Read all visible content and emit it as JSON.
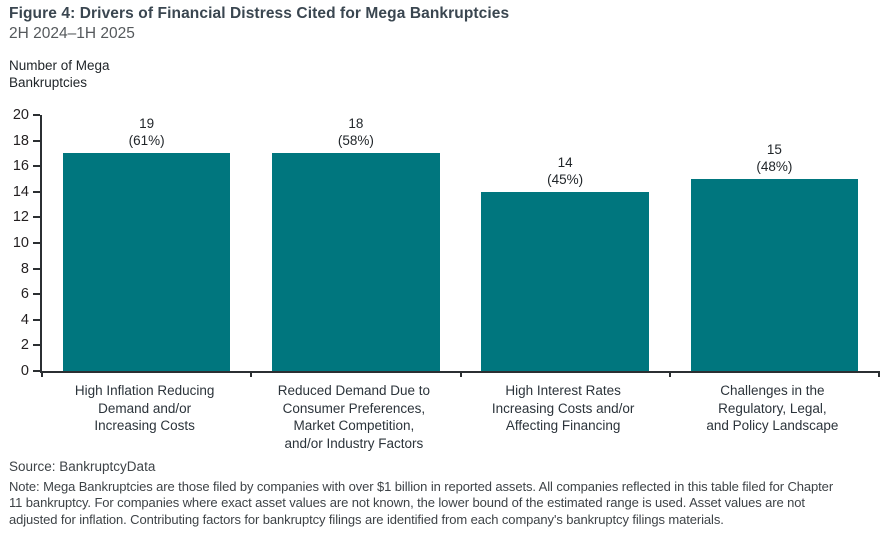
{
  "figure": {
    "title": "Figure 4: Drivers of Financial Distress Cited for Mega Bankruptcies",
    "subtitle": "2H 2024–1H 2025",
    "axis_title_display": "Number of Mega\nBankruptcies",
    "source": "Source: BankruptcyData",
    "note": "Note: Mega Bankruptcies are those filed by companies with over $1 billion in reported assets. All companies reflected in this table filed for Chapter 11 bankruptcy. For companies where exact asset values are not known, the lower bound of the estimated range is used. Asset values are not adjusted for inflation. Contributing factors for bankruptcy filings are identified from each company's bankruptcy filings materials."
  },
  "chart_data": {
    "type": "bar",
    "title": "Figure 4: Drivers of Financial Distress Cited for Mega Bankruptcies",
    "subtitle": "2H 2024–1H 2025",
    "ylabel": "Number of Mega Bankruptcies",
    "xlabel": "",
    "categories": [
      "High Inflation Reducing Demand and/or Increasing Costs",
      "Reduced Demand Due to Consumer Preferences, Market Competition, and/or Industry Factors",
      "High Interest Rates Increasing Costs and/or Affecting Financing",
      "Challenges in the Regulatory, Legal, and Policy Landscape"
    ],
    "categories_display": [
      "High Inflation Reducing\nDemand and/or\nIncreasing Costs",
      "Reduced Demand Due to\nConsumer Preferences,\nMarket Competition,\nand/or Industry Factors",
      "High Interest Rates\nIncreasing Costs and/or\nAffecting Financing",
      "Challenges in the\nRegulatory, Legal,\nand Policy Landscape"
    ],
    "values": [
      19,
      18,
      14,
      15
    ],
    "percent_labels": [
      "(61%)",
      "(58%)",
      "(45%)",
      "(48%)"
    ],
    "ylim": [
      0,
      20
    ],
    "ytick_step": 2,
    "grid": false,
    "legend_position": "none",
    "bar_color": "#00767E"
  },
  "colors": {
    "bar": "#00767E",
    "title": "#3A4650",
    "subtitle": "#55595C",
    "axis": "#2B2F32",
    "tick_text": "#231F20",
    "body_text": "#3E4347",
    "background": "#FFFFFF"
  }
}
